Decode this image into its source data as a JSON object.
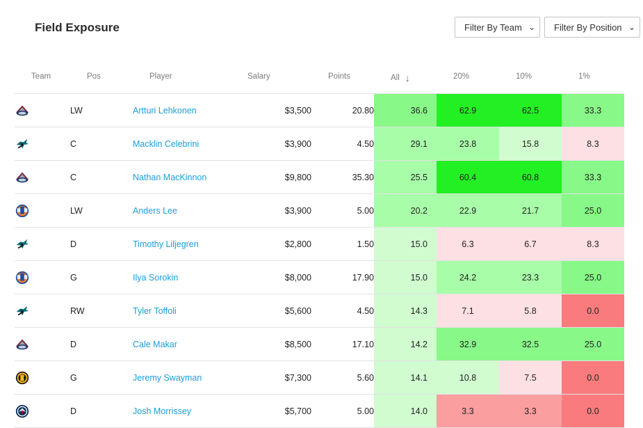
{
  "header": {
    "title": "Field Exposure",
    "filter_team": "Filter By Team",
    "filter_position": "Filter By Position"
  },
  "columns": [
    "Team",
    "Pos",
    "Player",
    "Salary",
    "Points",
    "All",
    "20%",
    "10%",
    "1%"
  ],
  "colors": {
    "link": "#1a9ed8",
    "green_strong": "#22f022",
    "green_mid": "#88f888",
    "green_light": "#a8fda8",
    "green_pale": "#d0fcd0",
    "pink_pale": "#fde0e3",
    "red_light": "#fb9ea0",
    "red_strong": "#f97b7e"
  },
  "rows": [
    {
      "team_logo": "avalanche-logo",
      "pos": "LW",
      "player": "Artturi Lehkonen",
      "salary": "$3,500",
      "points": "20.80",
      "all": "36.6",
      "p20": "62.9",
      "p10": "62.5",
      "p1": "33.3"
    },
    {
      "team_logo": "sharks-logo",
      "pos": "C",
      "player": "Macklin Celebrini",
      "salary": "$3,900",
      "points": "4.50",
      "all": "29.1",
      "p20": "23.8",
      "p10": "15.8",
      "p1": "8.3"
    },
    {
      "team_logo": "avalanche-logo",
      "pos": "C",
      "player": "Nathan MacKinnon",
      "salary": "$9,800",
      "points": "35.30",
      "all": "25.5",
      "p20": "60.4",
      "p10": "60.8",
      "p1": "33.3"
    },
    {
      "team_logo": "islanders-logo",
      "pos": "LW",
      "player": "Anders Lee",
      "salary": "$3,900",
      "points": "5.00",
      "all": "20.2",
      "p20": "22.9",
      "p10": "21.7",
      "p1": "25.0"
    },
    {
      "team_logo": "sharks-logo",
      "pos": "D",
      "player": "Timothy Liljegren",
      "salary": "$2,800",
      "points": "1.50",
      "all": "15.0",
      "p20": "6.3",
      "p10": "6.7",
      "p1": "8.3"
    },
    {
      "team_logo": "islanders-logo",
      "pos": "G",
      "player": "Ilya Sorokin",
      "salary": "$8,000",
      "points": "17.90",
      "all": "15.0",
      "p20": "24.2",
      "p10": "23.3",
      "p1": "25.0"
    },
    {
      "team_logo": "sharks-logo",
      "pos": "RW",
      "player": "Tyler Toffoli",
      "salary": "$5,600",
      "points": "4.50",
      "all": "14.3",
      "p20": "7.1",
      "p10": "5.8",
      "p1": "0.0"
    },
    {
      "team_logo": "avalanche-logo",
      "pos": "D",
      "player": "Cale Makar",
      "salary": "$8,500",
      "points": "17.10",
      "all": "14.2",
      "p20": "32.9",
      "p10": "32.5",
      "p1": "25.0"
    },
    {
      "team_logo": "bruins-logo",
      "pos": "G",
      "player": "Jeremy Swayman",
      "salary": "$7,300",
      "points": "5.60",
      "all": "14.1",
      "p20": "10.8",
      "p10": "7.5",
      "p1": "0.0"
    },
    {
      "team_logo": "jets-logo",
      "pos": "D",
      "player": "Josh Morrissey",
      "salary": "$5,700",
      "points": "5.00",
      "all": "14.0",
      "p20": "3.3",
      "p10": "3.3",
      "p1": "0.0"
    }
  ]
}
